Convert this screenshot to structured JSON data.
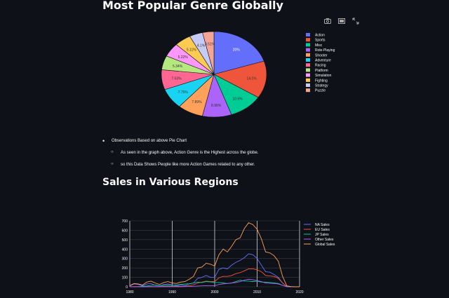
{
  "page": {
    "title1": "Most Popular Genre Globally",
    "title2": "Sales in Various Regions"
  },
  "toolbar": {
    "icons": [
      "camera-icon",
      "zoom-icon",
      "autoscale-icon"
    ]
  },
  "observations": {
    "heading": "Observations Based on above Pie Chart",
    "points": [
      "As seen in the graph above, Action Genre is the Highest across the globe.",
      "so this Data Shows People like more Action Games related to any other."
    ]
  },
  "chart_data": [
    {
      "type": "pie",
      "legend_position": "right",
      "categories": [
        "Action",
        "Sports",
        "Misc",
        "Role-Playing",
        "Shooter",
        "Adventure",
        "Racing",
        "Platform",
        "Simulation",
        "Fighting",
        "Strategy",
        "Puzzle"
      ],
      "values": [
        20,
        14.1,
        10.5,
        8.96,
        7.89,
        7.75,
        7.53,
        5.34,
        5.22,
        5.11,
        4.1,
        3.51
      ],
      "labels": [
        "20%",
        "14.1%",
        "10.5%",
        "8.96%",
        "7.89%",
        "7.75%",
        "7.53%",
        "5.34%",
        "5.22%",
        "5.11%",
        "4.1%",
        "3.51%"
      ],
      "colors": [
        "#636efa",
        "#ef553b",
        "#00cc96",
        "#ab63fa",
        "#ffa15a",
        "#19d3f3",
        "#ff6692",
        "#b6e880",
        "#ff97ff",
        "#fecb52",
        "#c6cbf5",
        "#f4a595"
      ]
    },
    {
      "type": "line",
      "legend_position": "top-right",
      "xlim": [
        1980,
        2020
      ],
      "ylim": [
        0,
        700
      ],
      "xticks": [
        1980,
        1990,
        2000,
        2010,
        2020
      ],
      "yticks": [
        0,
        100,
        200,
        300,
        400,
        500,
        600,
        700
      ],
      "grid": true,
      "x": [
        1980,
        1981,
        1982,
        1983,
        1984,
        1985,
        1986,
        1987,
        1988,
        1989,
        1990,
        1991,
        1992,
        1993,
        1994,
        1995,
        1996,
        1997,
        1998,
        1999,
        2000,
        2001,
        2002,
        2003,
        2004,
        2005,
        2006,
        2007,
        2008,
        2009,
        2010,
        2011,
        2012,
        2013,
        2014,
        2015,
        2016,
        2017,
        2018,
        2019,
        2020
      ],
      "series": [
        {
          "name": "NA Sales",
          "color": "#636efa",
          "values": [
            10,
            30,
            25,
            10,
            30,
            35,
            15,
            10,
            25,
            30,
            20,
            10,
            20,
            15,
            30,
            40,
            90,
            100,
            120,
            100,
            100,
            185,
            200,
            190,
            230,
            260,
            280,
            310,
            350,
            340,
            300,
            230,
            160,
            155,
            130,
            100,
            40,
            5,
            1,
            0,
            0
          ]
        },
        {
          "name": "EU Sales",
          "color": "#ef553b",
          "values": [
            1,
            2,
            2,
            1,
            2,
            3,
            2,
            2,
            5,
            6,
            5,
            4,
            5,
            6,
            12,
            20,
            40,
            50,
            60,
            55,
            55,
            95,
            110,
            110,
            120,
            140,
            150,
            170,
            190,
            190,
            180,
            160,
            120,
            115,
            110,
            90,
            40,
            3,
            1,
            0,
            0
          ]
        },
        {
          "name": "JP Sales",
          "color": "#00cc96",
          "values": [
            0,
            0,
            0,
            5,
            8,
            15,
            20,
            12,
            15,
            18,
            15,
            20,
            25,
            30,
            32,
            40,
            50,
            45,
            55,
            52,
            45,
            45,
            40,
            35,
            40,
            55,
            70,
            60,
            60,
            55,
            60,
            50,
            50,
            45,
            40,
            35,
            15,
            2,
            0,
            0,
            0
          ]
        },
        {
          "name": "Other Sales",
          "color": "#ab63fa",
          "values": [
            0,
            0,
            0,
            0,
            0,
            0,
            0,
            0,
            1,
            1,
            1,
            1,
            1,
            2,
            3,
            5,
            8,
            10,
            12,
            12,
            12,
            25,
            30,
            35,
            40,
            45,
            55,
            70,
            80,
            75,
            65,
            55,
            40,
            38,
            35,
            30,
            15,
            1,
            0,
            0,
            0
          ]
        },
        {
          "name": "Global Sales",
          "color": "#ffa15a",
          "values": [
            12,
            35,
            30,
            18,
            50,
            60,
            40,
            25,
            45,
            55,
            40,
            35,
            50,
            55,
            80,
            110,
            200,
            210,
            250,
            240,
            220,
            340,
            400,
            370,
            430,
            500,
            520,
            620,
            680,
            660,
            610,
            510,
            370,
            360,
            330,
            270,
            110,
            10,
            2,
            0,
            0
          ]
        }
      ]
    }
  ]
}
